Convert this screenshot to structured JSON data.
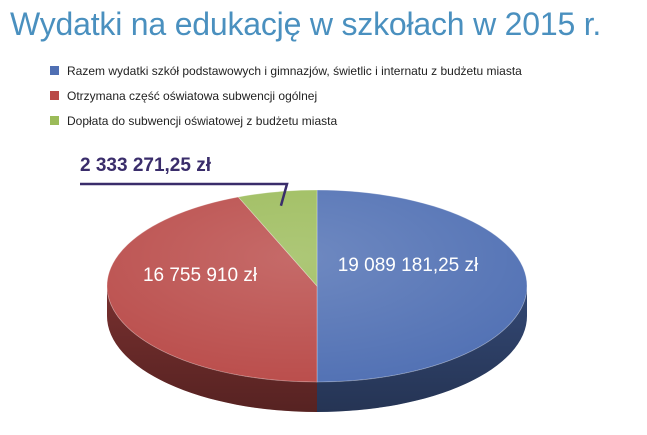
{
  "chart_data": {
    "type": "pie",
    "title": "Wydatki na edukację w szkołach w 2015 r.",
    "legend_position": "top",
    "categories": [
      "Razem wydatki szkół podstawowych i gimnazjów, świetlic i internatu z budżetu miasta",
      "Otrzymana część oświatowa subwencji ogólnej",
      "Dopłata do subwencji oświatowej z budżetu miasta"
    ],
    "values": [
      19089181.25,
      16755910,
      2333271.25
    ],
    "value_labels": [
      "19 089 181,25 zł",
      "16 755 910 zł",
      "2 333 271,25 zł"
    ],
    "colors": [
      "#4f6fb3",
      "#b94a48",
      "#9bbb59"
    ]
  }
}
